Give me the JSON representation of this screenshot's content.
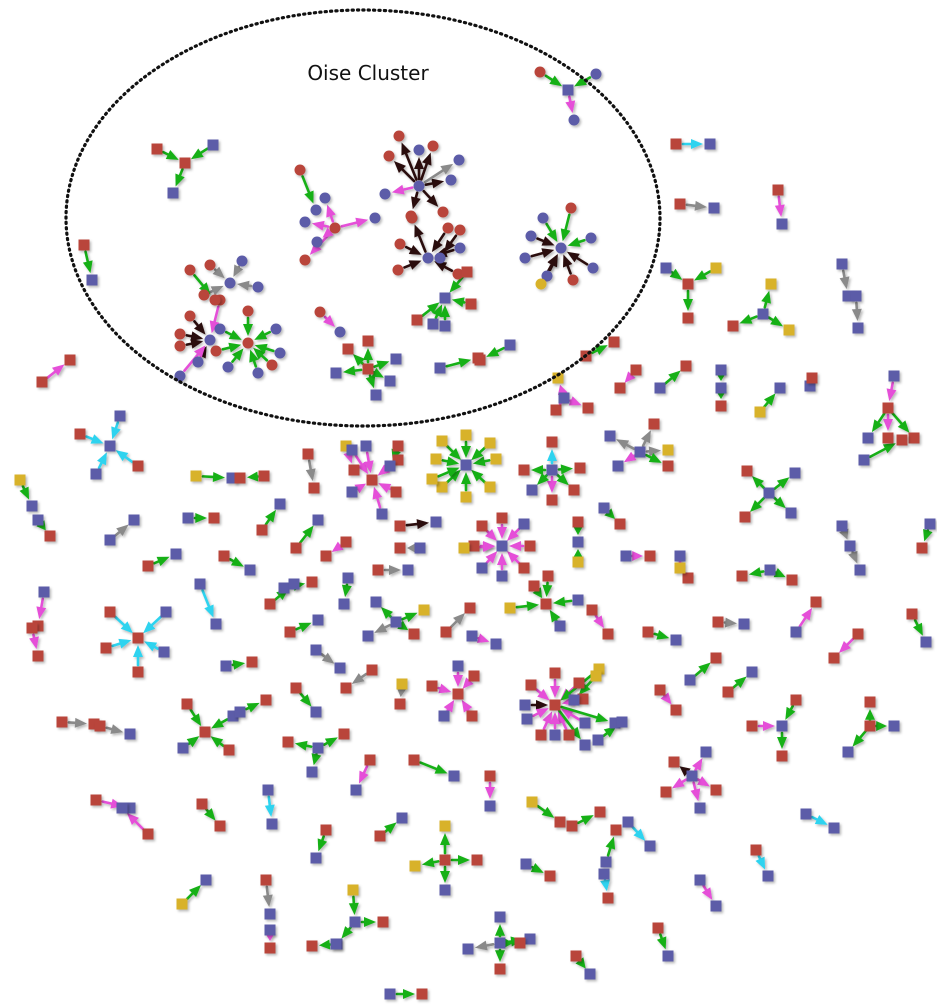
{
  "diagram": {
    "cluster_label": "Oise Cluster",
    "edge_colors": {
      "green": "#16b016",
      "magenta": "#e54fd8",
      "gray": "#8a8a8a",
      "cyan": "#2fd3ef",
      "dark": "#2a0a0a"
    },
    "node_colors": {
      "red": "#b9453a",
      "blue": "#5b5ba8",
      "yellow": "#d8b22c"
    },
    "node_shapes": [
      "square",
      "circle"
    ]
  }
}
